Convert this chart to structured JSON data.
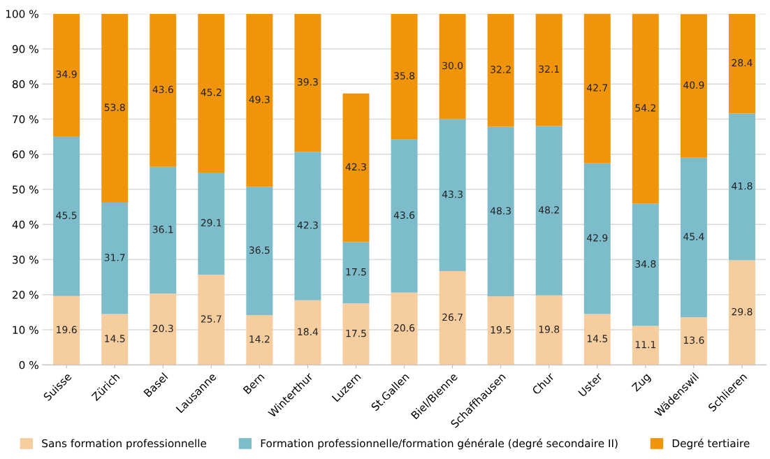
{
  "chart_data": {
    "type": "bar",
    "stacked": true,
    "categories": [
      "Suisse",
      "Zürich",
      "Basel",
      "Lausanne",
      "Bern",
      "Winterthur",
      "Luzern",
      "St.Gallen",
      "Biel/Bienne",
      "Schaffhausen",
      "Chur",
      "Uster",
      "Zug",
      "Wädenswil",
      "Schlieren"
    ],
    "series": [
      {
        "name": "Sans formation professionnelle",
        "color": "#f6cd9e",
        "values": [
          19.6,
          14.5,
          20.3,
          25.7,
          14.2,
          18.4,
          17.5,
          20.6,
          26.7,
          19.5,
          19.8,
          14.5,
          11.1,
          13.6,
          29.8
        ],
        "value_labels": [
          "19.6",
          "14.5",
          "20.3",
          "25.7",
          "14.2",
          "18.4",
          "17.5",
          "20.6",
          "26.7",
          "19.5",
          "19.8",
          "14.5",
          "11.1",
          "13.6",
          "29.8"
        ]
      },
      {
        "name": "Formation professionnelle/formation générale (degré secondaire II)",
        "color": "#7dbdcb",
        "values": [
          45.5,
          31.7,
          36.1,
          29.1,
          36.5,
          42.3,
          17.5,
          43.6,
          43.3,
          48.3,
          48.2,
          42.9,
          34.8,
          45.4,
          41.8
        ],
        "value_labels": [
          "45.5",
          "31.7",
          "36.1",
          "29.1",
          "36.5",
          "42.3",
          "17.5",
          "43.6",
          "43.3",
          "48.3",
          "48.2",
          "42.9",
          "34.8",
          "45.4",
          "41.8"
        ]
      },
      {
        "name": "Degré tertiaire",
        "color": "#f0940a",
        "values": [
          34.9,
          53.8,
          43.6,
          45.2,
          49.3,
          39.3,
          42.3,
          35.8,
          30.0,
          32.2,
          32.1,
          42.7,
          54.2,
          40.9,
          28.4
        ],
        "value_labels": [
          "34.9",
          "53.8",
          "43.6",
          "45.2",
          "49.3",
          "39.3",
          "42.3",
          "35.8",
          "30.0",
          "32.2",
          "32.1",
          "42.7",
          "54.2",
          "40.9",
          "28.4"
        ]
      }
    ],
    "ylim": [
      0,
      100
    ],
    "yticks": [
      {
        "value": 0,
        "label": "0 %"
      },
      {
        "value": 10,
        "label": "10 %"
      },
      {
        "value": 20,
        "label": "20 %"
      },
      {
        "value": 30,
        "label": "30 %"
      },
      {
        "value": 40,
        "label": "40 %"
      },
      {
        "value": 50,
        "label": "50 %"
      },
      {
        "value": 60,
        "label": "60 %"
      },
      {
        "value": 70,
        "label": "70 %"
      },
      {
        "value": 80,
        "label": "80 %"
      },
      {
        "value": 90,
        "label": "90 %"
      },
      {
        "value": 100,
        "label": "100 %"
      }
    ],
    "grid": "y",
    "legend": "bottom"
  }
}
